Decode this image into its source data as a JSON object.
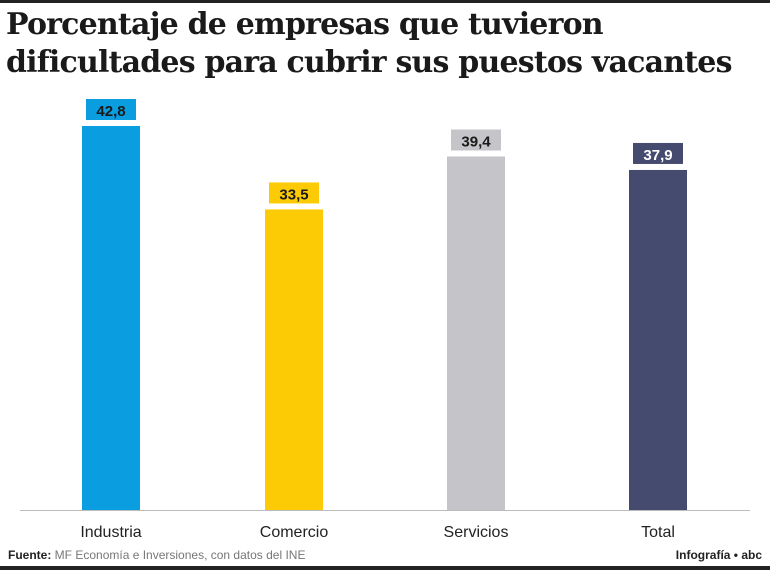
{
  "title_lines": [
    "Porcentaje de empresas que tuvieron",
    "dificultades para cubrir sus puestos vacantes"
  ],
  "chart_data": {
    "type": "bar",
    "title": "Porcentaje de empresas que tuvieron dificultades para cubrir sus puestos vacantes",
    "categories": [
      "Industria",
      "Comercio",
      "Servicios",
      "Total"
    ],
    "values": [
      42.8,
      33.5,
      39.4,
      37.9
    ],
    "value_labels": [
      "42,8",
      "33,5",
      "39,4",
      "37,9"
    ],
    "colors": [
      "#0a9de0",
      "#fccb05",
      "#c4c4c9",
      "#454b6f"
    ],
    "label_text_colors": [
      "#1a1a1a",
      "#1a1a1a",
      "#1a1a1a",
      "#ffffff"
    ],
    "ylim": [
      0,
      43
    ],
    "grid": false,
    "xlabel": "",
    "ylabel": ""
  },
  "footer": {
    "source_label": "Fuente:",
    "source_text": " MF Economía e Inversiones, con datos del INE",
    "credit": "Infografía • abc"
  }
}
